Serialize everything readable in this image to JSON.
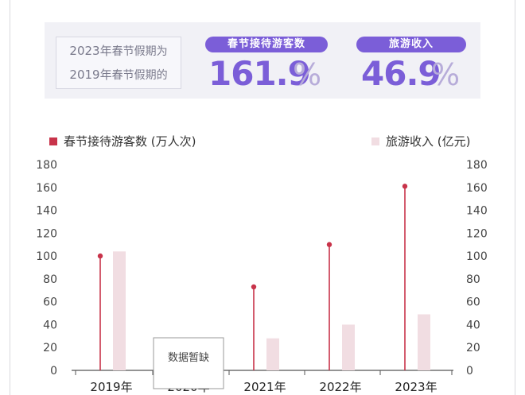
{
  "kpi": {
    "note_line1_year": "2023年",
    "note_line1_text": "春节假期为",
    "note_line2_year": "2019年",
    "note_line2_text": "春节假期的",
    "items": [
      {
        "label": "春节接待游客数",
        "value": "161.9",
        "unit": "%"
      },
      {
        "label": "旅游收入",
        "value": "46.9",
        "unit": "%"
      }
    ]
  },
  "chart_data": {
    "type": "bar",
    "categories": [
      "2019年",
      "2020年",
      "2021年",
      "2022年",
      "2023年"
    ],
    "series": [
      {
        "name": "春节接待游客数 (万人次)",
        "kind": "lollipop",
        "axis": "left",
        "values": [
          100,
          null,
          73,
          110,
          161
        ],
        "color": "#c8334a"
      },
      {
        "name": "旅游收入 (亿元)",
        "kind": "bar",
        "axis": "right",
        "values": [
          104,
          null,
          28,
          40,
          49
        ],
        "color": "#f1dde2"
      }
    ],
    "ylim": [
      0,
      180
    ],
    "y_ticks": [
      "180",
      "160",
      "140",
      "120",
      "100",
      "80",
      "60",
      "40",
      "20",
      "0"
    ],
    "y2lim": [
      0,
      180
    ],
    "y2_ticks": [
      "180",
      "160",
      "140",
      "120",
      "100",
      "80",
      "60",
      "40",
      "20",
      "0"
    ],
    "annotations": [
      {
        "category": "2020年",
        "text": "数据暂缺"
      }
    ],
    "grid": false,
    "legend_placement": "top"
  }
}
